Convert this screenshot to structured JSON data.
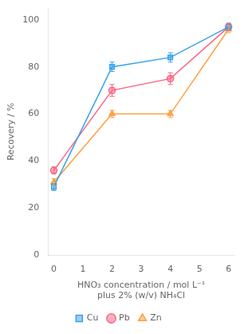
{
  "chart_data": {
    "type": "line",
    "x": [
      0,
      2,
      4,
      6
    ],
    "series": [
      {
        "name": "Cu",
        "marker": "square",
        "values": [
          29,
          80,
          84,
          97
        ],
        "yerr": [
          1.5,
          2.0,
          2.0,
          1.5
        ]
      },
      {
        "name": "Pb",
        "marker": "circle",
        "values": [
          36,
          70,
          75,
          97
        ],
        "yerr": [
          1.5,
          2.5,
          2.5,
          1.5
        ]
      },
      {
        "name": "Zn",
        "marker": "triangle",
        "values": [
          31,
          60,
          60,
          96
        ],
        "yerr": [
          1.5,
          1.5,
          1.5,
          1.5
        ]
      }
    ],
    "xlabel": [
      "HNO₃ concentration / mol L⁻¹",
      "plus 2% (w/v) NH₄Cl"
    ],
    "ylabel": "Recovery / %",
    "xlim": [
      -0.2,
      6.2
    ],
    "ylim": [
      0,
      105
    ],
    "xticks": [
      0,
      1,
      2,
      3,
      4,
      5,
      6
    ],
    "yticks": [
      0,
      20,
      40,
      60,
      80,
      100
    ],
    "grid": false,
    "legend": "bottom"
  }
}
